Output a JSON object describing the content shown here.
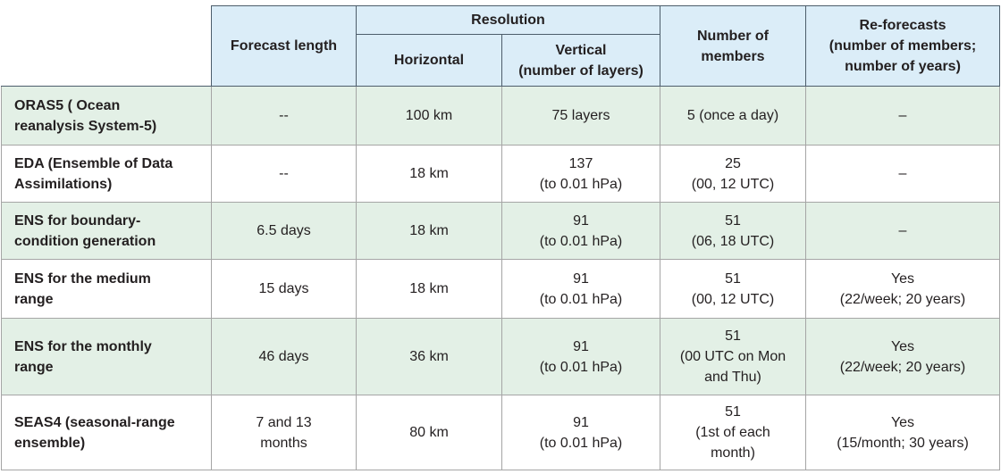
{
  "header": {
    "forecast_length": "Forecast length",
    "resolution": {
      "title": "Resolution",
      "horizontal": "Horizontal",
      "vertical": "Vertical\n(number of layers)"
    },
    "members": "Number of\nmembers",
    "reforecasts": "Re-forecasts\n(number of members;\nnumber of years)"
  },
  "rows": [
    [
      "ORAS5 ( Ocean\nreanalysis System-5)",
      "--",
      "100 km",
      "75 layers",
      "5 (once a day)",
      "–"
    ],
    [
      "EDA (Ensemble of Data\nAssimilations)",
      "--",
      "18 km",
      "137\n(to 0.01 hPa)",
      "25\n(00, 12 UTC)",
      "–"
    ],
    [
      "ENS for boundary-\ncondition generation",
      "6.5 days",
      "18 km",
      "91\n(to 0.01 hPa)",
      "51\n(06, 18 UTC)",
      "–"
    ],
    [
      "ENS for the medium\nrange",
      "15 days",
      "18 km",
      "91\n(to 0.01 hPa)",
      "51\n(00, 12 UTC)",
      "Yes\n(22/week; 20 years)"
    ],
    [
      "ENS for the monthly\nrange",
      "46 days",
      "36 km",
      "91\n(to 0.01 hPa)",
      "51\n(00 UTC on Mon\nand Thu)",
      "Yes\n(22/week; 20 years)"
    ],
    [
      "SEAS4 (seasonal-range\nensemble)",
      "7 and 13\nmonths",
      "80 km",
      "91\n(to 0.01 hPa)",
      "51\n(1st of each\nmonth)",
      "Yes\n(15/month; 30 years)"
    ]
  ]
}
